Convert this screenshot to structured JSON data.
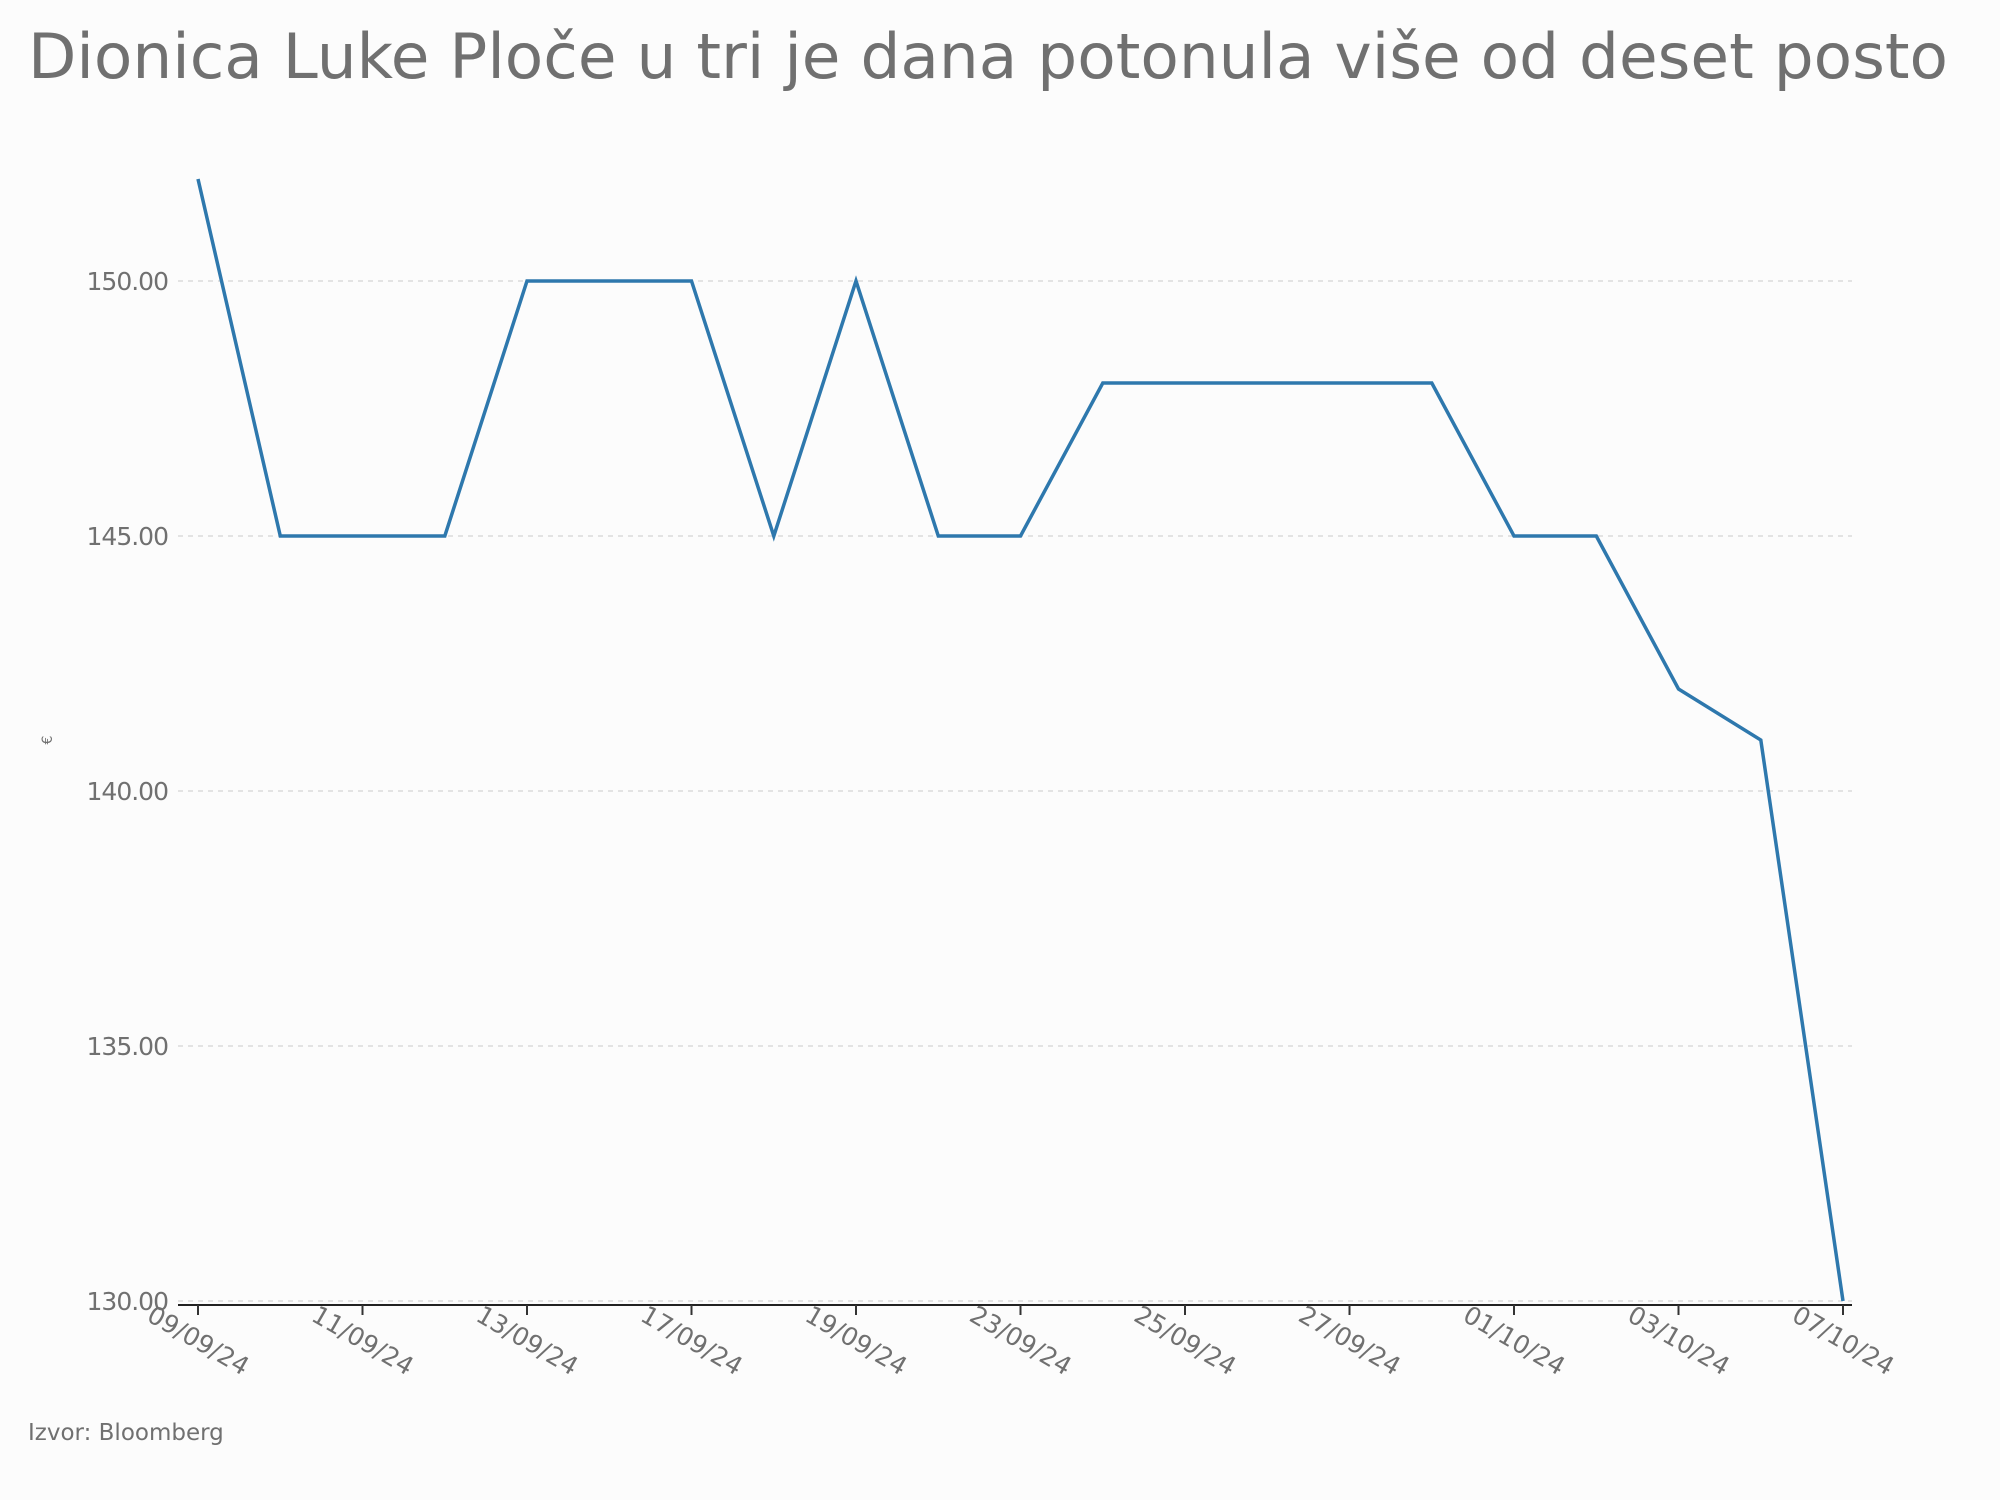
{
  "chart_data": {
    "type": "line",
    "title": "Dionica Luke Ploče u tri je dana potonula više od deset posto",
    "y_label": "€",
    "source": "Izvor: Bloomberg",
    "categories": [
      "09/09/24",
      null,
      "11/09/24",
      null,
      "13/09/24",
      null,
      "17/09/24",
      null,
      "19/09/24",
      null,
      "23/09/24",
      null,
      "25/09/24",
      null,
      "27/09/24",
      null,
      "01/10/24",
      null,
      "03/10/24",
      null,
      "07/10/24"
    ],
    "series": [
      {
        "color": "#2e78ad",
        "values": [
          152,
          145,
          145,
          145,
          150,
          150,
          150,
          145,
          150,
          145,
          145,
          148,
          148,
          148,
          148,
          148,
          145,
          145,
          142,
          141,
          130
        ]
      }
    ],
    "ylim": [
      130,
      152
    ],
    "yticks": [
      {
        "value": 130,
        "label": "130.00"
      },
      {
        "value": 135,
        "label": "135.00"
      },
      {
        "value": 140,
        "label": "140.00"
      },
      {
        "value": 145,
        "label": "145.00"
      },
      {
        "value": 150,
        "label": "150.00"
      }
    ],
    "grid": true
  }
}
